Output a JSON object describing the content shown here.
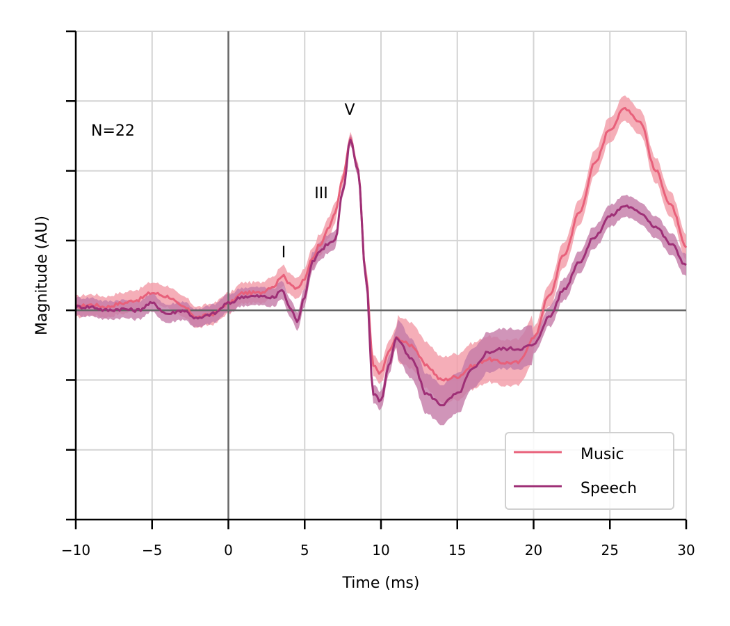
{
  "chart_data": {
    "type": "line",
    "title": "",
    "xlabel": "Time (ms)",
    "ylabel": "Magnitude (AU)",
    "xlim": [
      -10,
      30
    ],
    "ylim": [
      -3,
      4
    ],
    "xticks": [
      -10,
      -5,
      0,
      5,
      10,
      15,
      20,
      25,
      30
    ],
    "xtick_labels": [
      "−10",
      "−5",
      "0",
      "5",
      "10",
      "15",
      "20",
      "25",
      "30"
    ],
    "yticks": [
      -3,
      -2,
      -1,
      0,
      1,
      2,
      3,
      4
    ],
    "ytick_labels": [
      "",
      "",
      "",
      "",
      "",
      "",
      "",
      ""
    ],
    "grid": true,
    "reference_lines": {
      "x": 0,
      "y": 0
    },
    "legend_position": "lower right",
    "annotations": [
      {
        "text": "N=22",
        "x": -9,
        "y": 2.6
      },
      {
        "text": "I",
        "x": 3.6,
        "y": 0.8
      },
      {
        "text": "III",
        "x": 6.1,
        "y": 1.65
      },
      {
        "text": "V",
        "x": 7.9,
        "y": 2.85
      }
    ],
    "series": [
      {
        "name": "Music",
        "color": "#e8607a",
        "band_color": "#f29aa6",
        "x": [
          -10,
          -9,
          -8,
          -7,
          -6,
          -5,
          -4,
          -3,
          -2,
          -1,
          0,
          1,
          2,
          3,
          3.5,
          4,
          4.5,
          5,
          5.5,
          6,
          6.5,
          7,
          7.5,
          8,
          8.5,
          9,
          9.5,
          10,
          10.5,
          11,
          12,
          13,
          14,
          15,
          16,
          17,
          18,
          19,
          20,
          21,
          22,
          23,
          24,
          25,
          26,
          27,
          28,
          29,
          30
        ],
        "y": [
          0.05,
          0.08,
          0.05,
          0.1,
          0.15,
          0.25,
          0.2,
          0.05,
          -0.1,
          -0.05,
          0.1,
          0.25,
          0.25,
          0.35,
          0.5,
          0.4,
          0.3,
          0.45,
          0.75,
          0.95,
          1.15,
          1.4,
          1.9,
          2.45,
          2.0,
          0.5,
          -0.8,
          -0.9,
          -0.6,
          -0.4,
          -0.5,
          -0.8,
          -1.0,
          -0.95,
          -0.8,
          -0.7,
          -0.75,
          -0.75,
          -0.4,
          0.2,
          0.8,
          1.4,
          2.1,
          2.6,
          2.9,
          2.7,
          2.0,
          1.5,
          0.9
        ],
        "err": 0.15
      },
      {
        "name": "Speech",
        "color": "#9e2f76",
        "band_color": "#c47aa8",
        "x": [
          -10,
          -9,
          -8,
          -7,
          -6,
          -5,
          -4,
          -3,
          -2,
          -1,
          0,
          1,
          2,
          3,
          3.5,
          4,
          4.5,
          5,
          5.5,
          6,
          6.5,
          7,
          7.5,
          8,
          8.5,
          9,
          9.5,
          10,
          10.5,
          11,
          12,
          13,
          14,
          15,
          16,
          17,
          18,
          19,
          20,
          21,
          22,
          23,
          24,
          25,
          26,
          27,
          28,
          29,
          30
        ],
        "y": [
          0.05,
          0.05,
          0.0,
          0.02,
          0.0,
          0.1,
          -0.05,
          0.0,
          -0.12,
          -0.05,
          0.1,
          0.2,
          0.2,
          0.18,
          0.3,
          0.05,
          -0.15,
          0.2,
          0.7,
          0.85,
          0.95,
          1.0,
          1.7,
          2.45,
          2.0,
          0.5,
          -1.2,
          -1.3,
          -0.8,
          -0.4,
          -0.7,
          -1.2,
          -1.35,
          -1.2,
          -0.85,
          -0.6,
          -0.55,
          -0.55,
          -0.5,
          -0.1,
          0.3,
          0.7,
          1.05,
          1.35,
          1.5,
          1.4,
          1.2,
          0.95,
          0.65
        ],
        "err": 0.13
      }
    ]
  },
  "legend": {
    "items": [
      {
        "label": "Music",
        "color": "#e8607a"
      },
      {
        "label": "Speech",
        "color": "#9e2f76"
      }
    ]
  },
  "annotations": {
    "n_label": "N=22",
    "wave_i": "I",
    "wave_iii": "III",
    "wave_v": "V"
  },
  "axes": {
    "xlabel": "Time (ms)",
    "ylabel": "Magnitude (AU)"
  }
}
